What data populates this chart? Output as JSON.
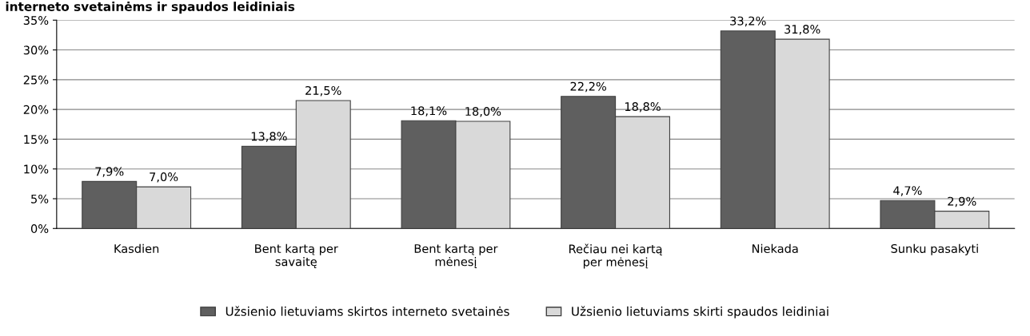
{
  "chart_data": {
    "type": "bar",
    "title": "interneto svetainėms ir spaudos leidiniais",
    "categories": [
      "Kasdien",
      "Bent kartą per\nsavaitę",
      "Bent kartą per\nmėnesį",
      "Rečiau nei kartą\nper mėnesį",
      "Niekada",
      "Sunku pasakyti"
    ],
    "series": [
      {
        "name": "Užsienio lietuviams skirtos interneto svetainės",
        "color": "#5f5f5f",
        "values": [
          7.9,
          13.8,
          18.1,
          22.2,
          33.2,
          4.7
        ],
        "value_labels": [
          "7,9%",
          "13,8%",
          "18,1%",
          "22,2%",
          "33,2%",
          "4,7%"
        ]
      },
      {
        "name": "Užsienio lietuviams skirti spaudos leidiniai",
        "color": "#d9d9d9",
        "values": [
          7.0,
          21.5,
          18.0,
          18.8,
          31.8,
          2.9
        ],
        "value_labels": [
          "7,0%",
          "21,5%",
          "18,0%",
          "18,8%",
          "31,8%",
          "2,9%"
        ]
      }
    ],
    "ylim": [
      0,
      35
    ],
    "yticks": [
      {
        "value": 0,
        "label": "0%"
      },
      {
        "value": 5,
        "label": "5%"
      },
      {
        "value": 10,
        "label": "10%"
      },
      {
        "value": 15,
        "label": "15%"
      },
      {
        "value": 20,
        "label": "20%"
      },
      {
        "value": 25,
        "label": "25%"
      },
      {
        "value": 30,
        "label": "30%"
      },
      {
        "value": 35,
        "label": "35%"
      }
    ],
    "grid": "y",
    "legend": "bottom"
  }
}
